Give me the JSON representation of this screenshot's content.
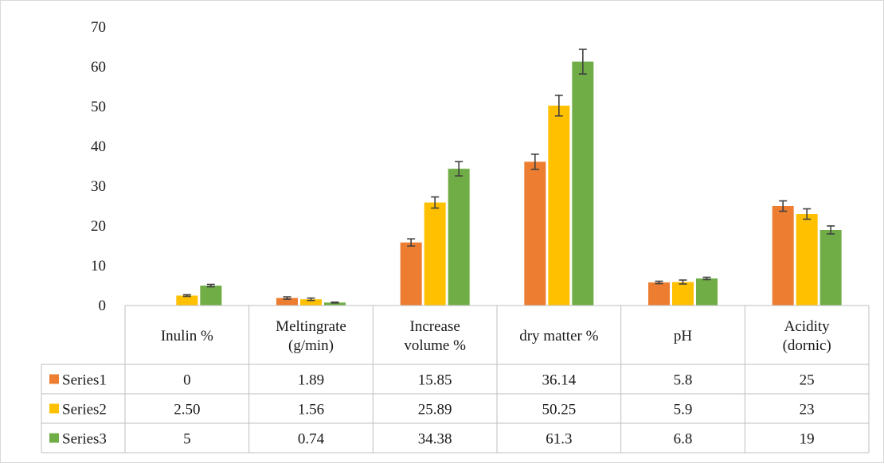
{
  "chart_data": {
    "type": "bar",
    "categories": [
      [
        "Inulin %"
      ],
      [
        "Meltingrate",
        "(g/min)"
      ],
      [
        "Increase",
        "volume %"
      ],
      [
        "dry matter %"
      ],
      [
        "pH"
      ],
      [
        "Acidity",
        "(dornic)"
      ]
    ],
    "series": [
      {
        "name": "Series1",
        "color": "#ed7d31",
        "values": [
          0,
          1.89,
          15.85,
          36.14,
          5.8,
          25
        ],
        "labels": [
          "0",
          "1.89",
          "15.85",
          "36.14",
          "5.8",
          "25"
        ],
        "errors": [
          0,
          0.3,
          0.9,
          1.9,
          0.3,
          1.3
        ]
      },
      {
        "name": "Series2",
        "color": "#ffc000",
        "values": [
          2.5,
          1.56,
          25.89,
          50.25,
          5.9,
          23
        ],
        "labels": [
          "2.50",
          "1.56",
          "25.89",
          "50.25",
          "5.9",
          "23"
        ],
        "errors": [
          0.2,
          0.3,
          1.4,
          2.6,
          0.5,
          1.3
        ]
      },
      {
        "name": "Series3",
        "color": "#70ad47",
        "values": [
          5,
          0.74,
          34.38,
          61.3,
          6.8,
          19
        ],
        "labels": [
          "5",
          "0.74",
          "34.38",
          "61.3",
          "6.8",
          "19"
        ],
        "errors": [
          0.3,
          0.1,
          1.8,
          3.1,
          0.3,
          1.0
        ]
      }
    ],
    "yticks": [
      "0",
      "10",
      "20",
      "30",
      "40",
      "50",
      "60",
      "70"
    ],
    "ylim": [
      0,
      70
    ],
    "grid": false,
    "legend": "data-table"
  }
}
